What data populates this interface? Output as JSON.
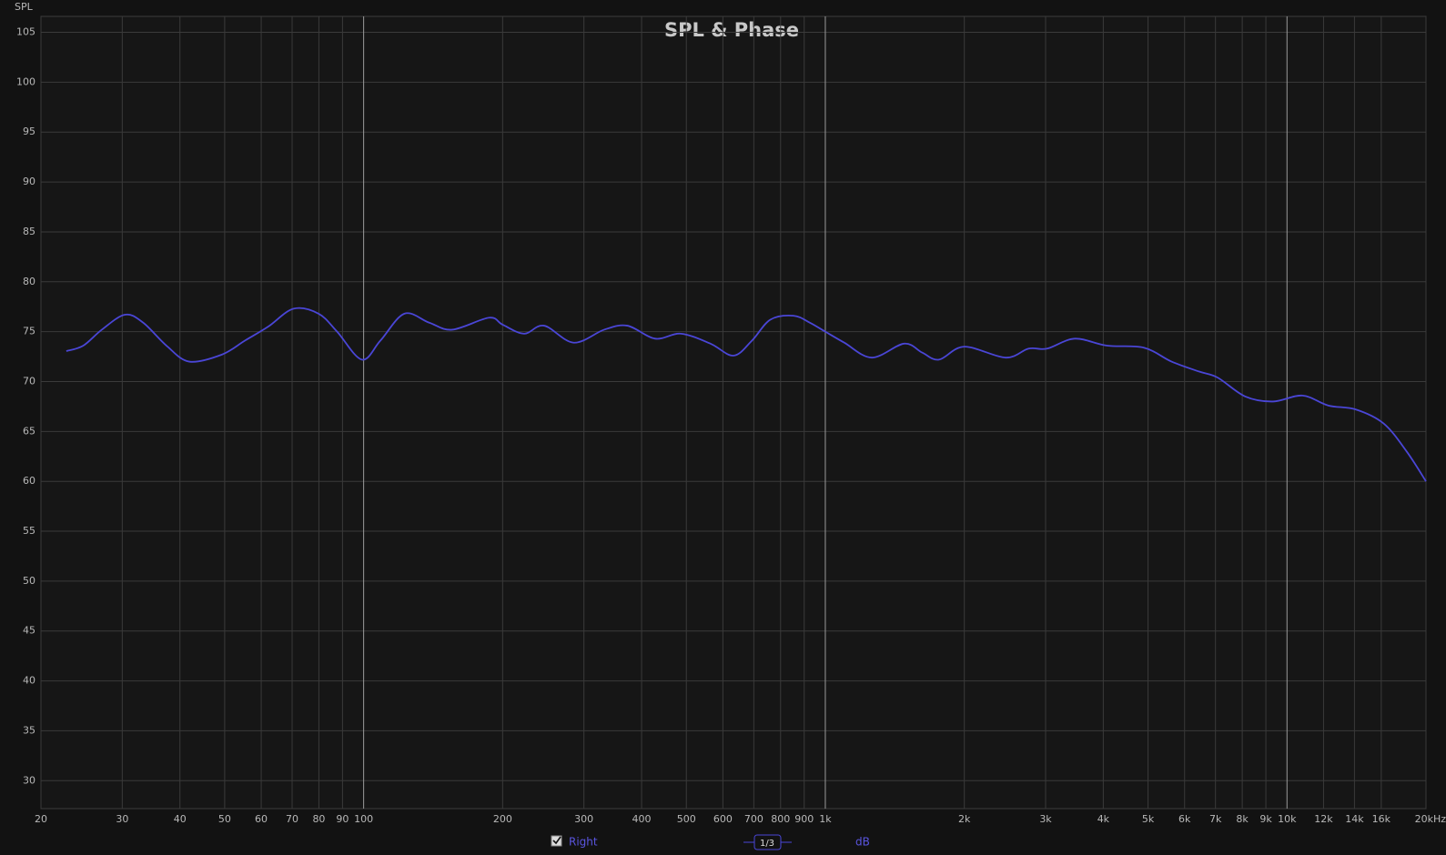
{
  "chart_data": {
    "type": "line",
    "title": "SPL & Phase",
    "ylabel": "SPL",
    "smoothing": "1/3",
    "units": "dB",
    "xscale": "log",
    "grid": true,
    "xlim": [
      20,
      20000
    ],
    "ylim": [
      27.2,
      106.6
    ],
    "xticks": [
      20,
      30,
      40,
      50,
      60,
      70,
      80,
      90,
      100,
      200,
      300,
      400,
      500,
      600,
      700,
      800,
      900,
      {
        "value": 1000,
        "label": "1k"
      },
      {
        "value": 2000,
        "label": "2k"
      },
      {
        "value": 3000,
        "label": "3k"
      },
      {
        "value": 4000,
        "label": "4k"
      },
      {
        "value": 5000,
        "label": "5k"
      },
      {
        "value": 6000,
        "label": "6k"
      },
      {
        "value": 7000,
        "label": "7k"
      },
      {
        "value": 8000,
        "label": "8k"
      },
      {
        "value": 9000,
        "label": "9k"
      },
      {
        "value": 10000,
        "label": "10k"
      },
      {
        "value": 12000,
        "label": "12k"
      },
      {
        "value": 14000,
        "label": "14k"
      },
      {
        "value": 16000,
        "label": "16k"
      },
      {
        "value": 20000,
        "label": "20kHz"
      }
    ],
    "yticks": [
      30,
      35,
      40,
      45,
      50,
      55,
      60,
      65,
      70,
      75,
      80,
      85,
      90,
      95,
      100,
      105
    ],
    "x": [
      22.7,
      24.7,
      27.1,
      30.4,
      33.3,
      37.4,
      41.9,
      49.3,
      55.3,
      62.1,
      70.5,
      79.9,
      87.6,
      99.1,
      108.7,
      122.5,
      138.7,
      155.6,
      187,
      200,
      222.6,
      246,
      285,
      332,
      372.6,
      427.9,
      486.6,
      563.9,
      632.5,
      693.5,
      760,
      853,
      926,
      1000,
      1099,
      1261,
      1481,
      1622,
      1763,
      2000,
      2458,
      2757,
      3022,
      3470,
      4076,
      4897,
      5623,
      6456,
      7076,
      8122,
      9325,
      10800,
      12290,
      14105,
      16190,
      18160,
      20000
    ],
    "series": [
      {
        "name": "Right",
        "color": "#4a46d6",
        "values": [
          73.05,
          73.6,
          75.2,
          76.7,
          75.9,
          73.6,
          72.0,
          72.7,
          74.1,
          75.5,
          77.3,
          76.8,
          75.0,
          72.2,
          74.1,
          76.8,
          75.9,
          75.2,
          76.4,
          75.7,
          74.8,
          75.6,
          73.9,
          75.2,
          75.6,
          74.3,
          74.8,
          73.8,
          72.6,
          74.1,
          76.2,
          76.6,
          75.9,
          75.0,
          73.9,
          72.4,
          73.8,
          72.9,
          72.2,
          73.5,
          72.4,
          73.3,
          73.3,
          74.3,
          73.6,
          73.4,
          72.0,
          71.0,
          70.4,
          68.5,
          68.0,
          68.6,
          67.6,
          67.2,
          65.8,
          63.0,
          60.0
        ]
      }
    ]
  }
}
